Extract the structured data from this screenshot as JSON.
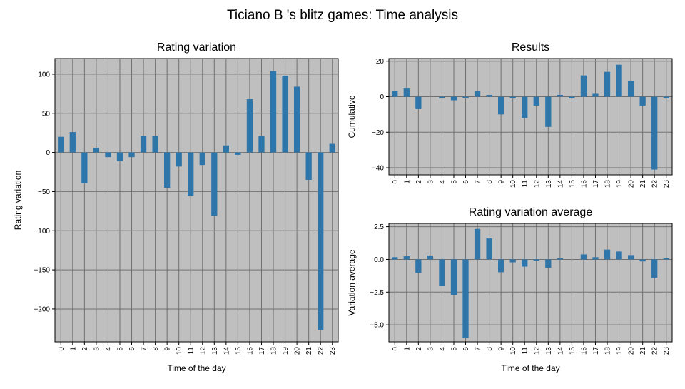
{
  "figure": {
    "title": "Ticiano B 's blitz games: Time analysis"
  },
  "colors": {
    "bar": "#2e75aa",
    "plot_bg": "#bfbfbf",
    "grid": "#707070",
    "axis": "#000000",
    "page_bg": "#ffffff"
  },
  "chart_data": [
    {
      "type": "bar",
      "title": "Rating variation",
      "xlabel": "Time of the day",
      "ylabel": "Rating variation",
      "categories": [
        "0",
        "1",
        "2",
        "3",
        "4",
        "5",
        "6",
        "7",
        "8",
        "9",
        "10",
        "11",
        "12",
        "13",
        "14",
        "15",
        "16",
        "17",
        "18",
        "19",
        "20",
        "21",
        "22",
        "23"
      ],
      "values": [
        20,
        26,
        -39,
        6,
        -6,
        -11,
        -6,
        21,
        21,
        -45,
        -18,
        -56,
        -16,
        -81,
        9,
        -3,
        68,
        21,
        104,
        98,
        84,
        -35,
        -227,
        11
      ],
      "ylim": [
        -242,
        120
      ],
      "yticks": [
        100,
        50,
        0,
        -50,
        -100,
        -150,
        -200
      ],
      "ytick_labels": [
        "100",
        "50",
        "0",
        "−50",
        "−100",
        "−150",
        "−200"
      ],
      "grid": true
    },
    {
      "type": "bar",
      "title": "Results",
      "xlabel": "",
      "ylabel": "Cumulative",
      "categories": [
        "0",
        "1",
        "2",
        "3",
        "4",
        "5",
        "6",
        "7",
        "8",
        "9",
        "10",
        "11",
        "12",
        "13",
        "14",
        "15",
        "16",
        "17",
        "18",
        "19",
        "20",
        "21",
        "22",
        "23"
      ],
      "values": [
        3,
        5,
        -7,
        0,
        -1,
        -2,
        -1,
        3,
        1,
        -10,
        -1,
        -12,
        -5,
        -17,
        1,
        -1,
        12,
        2,
        14,
        18,
        9,
        -5,
        -41,
        -1
      ],
      "ylim": [
        -44,
        21.5
      ],
      "yticks": [
        20,
        0,
        -20,
        -40
      ],
      "ytick_labels": [
        "20",
        "0",
        "−20",
        "−40"
      ],
      "grid": true
    },
    {
      "type": "bar",
      "title": "Rating variation average",
      "xlabel": "Time of the day",
      "ylabel": "Variation average",
      "categories": [
        "0",
        "1",
        "2",
        "3",
        "4",
        "5",
        "6",
        "7",
        "8",
        "9",
        "10",
        "11",
        "12",
        "13",
        "14",
        "15",
        "16",
        "17",
        "18",
        "19",
        "20",
        "21",
        "22",
        "23"
      ],
      "values": [
        0.17,
        0.24,
        -1.03,
        0.3,
        -2.0,
        -2.72,
        -6.0,
        2.33,
        1.6,
        -0.98,
        -0.22,
        -0.55,
        -0.1,
        -0.65,
        0.1,
        0.0,
        0.38,
        0.17,
        0.75,
        0.6,
        0.33,
        -0.15,
        -1.4,
        0.1
      ],
      "ylim": [
        -6.3,
        2.75
      ],
      "yticks": [
        2.5,
        0.0,
        -2.5,
        -5.0
      ],
      "ytick_labels": [
        "2.5",
        "0.0",
        "−2.5",
        "−5.0"
      ],
      "grid": true
    }
  ]
}
